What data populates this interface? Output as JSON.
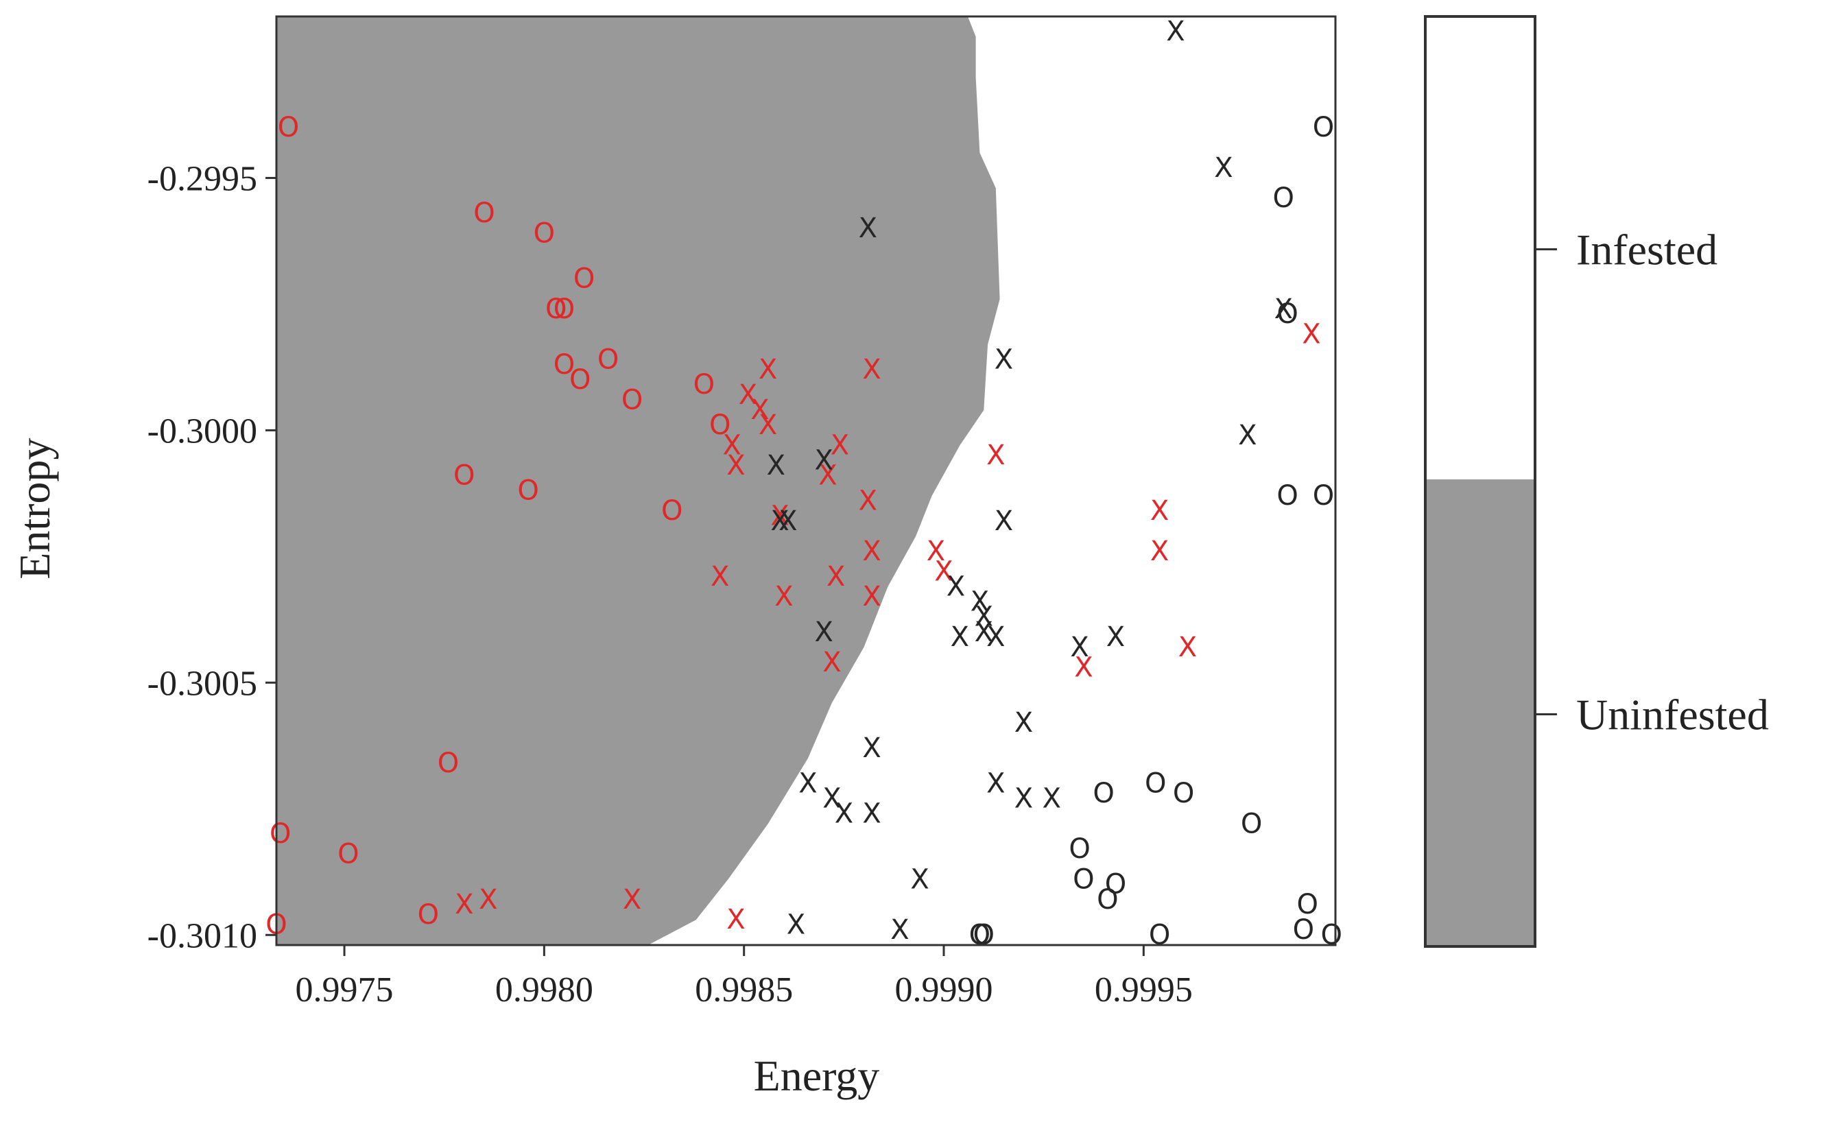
{
  "chart_data": {
    "type": "scatter",
    "xlabel": "Energy",
    "ylabel": "Entropy",
    "xlim": [
      0.99733,
      0.99998
    ],
    "ylim": [
      -0.30102,
      -0.29918
    ],
    "xticks": [
      "0.9975",
      "0.9980",
      "0.9985",
      "0.9990",
      "0.9995"
    ],
    "xtick_values": [
      0.9975,
      0.998,
      0.9985,
      0.999,
      0.9995
    ],
    "yticks": [
      "-0.2995",
      "-0.3000",
      "-0.3005",
      "-0.3010"
    ],
    "ytick_values": [
      -0.2995,
      -0.3,
      -0.3005,
      -0.301
    ],
    "regions": {
      "uninfested_color": "#999999",
      "infested_color": "#ffffff",
      "boundary": [
        [
          0.99906,
          -0.29918
        ],
        [
          0.99908,
          -0.29922
        ],
        [
          0.99908,
          -0.2993
        ],
        [
          0.99909,
          -0.29945
        ],
        [
          0.99913,
          -0.29952
        ],
        [
          0.99914,
          -0.29974
        ],
        [
          0.99911,
          -0.29983
        ],
        [
          0.9991,
          -0.29996
        ],
        [
          0.99904,
          -0.30003
        ],
        [
          0.99897,
          -0.30013
        ],
        [
          0.99893,
          -0.30021
        ],
        [
          0.99886,
          -0.30031
        ],
        [
          0.9988,
          -0.30043
        ],
        [
          0.99872,
          -0.30054
        ],
        [
          0.99866,
          -0.30065
        ],
        [
          0.99856,
          -0.30078
        ],
        [
          0.99846,
          -0.30089
        ],
        [
          0.99838,
          -0.30097
        ],
        [
          0.99826,
          -0.30102
        ]
      ]
    },
    "legend": {
      "bar_labels": [
        "Infested",
        "Uninfested"
      ],
      "bar_colors": [
        "#ffffff",
        "#999999"
      ],
      "placement": "right"
    },
    "series": [
      {
        "name": "red-o",
        "marker": "O",
        "color": "#e02828",
        "points": [
          [
            0.99736,
            -0.2994
          ],
          [
            0.99785,
            -0.29957
          ],
          [
            0.998,
            -0.29961
          ],
          [
            0.9981,
            -0.2997
          ],
          [
            0.99803,
            -0.29976
          ],
          [
            0.99805,
            -0.29976
          ],
          [
            0.99816,
            -0.29986
          ],
          [
            0.99805,
            -0.29987
          ],
          [
            0.99809,
            -0.2999
          ],
          [
            0.99822,
            -0.29994
          ],
          [
            0.9984,
            -0.29991
          ],
          [
            0.99844,
            -0.29999
          ],
          [
            0.9978,
            -0.30009
          ],
          [
            0.99796,
            -0.30012
          ],
          [
            0.99832,
            -0.30016
          ],
          [
            0.99776,
            -0.30066
          ],
          [
            0.99734,
            -0.3008
          ],
          [
            0.99751,
            -0.30084
          ],
          [
            0.99733,
            -0.30098
          ],
          [
            0.99771,
            -0.30096
          ]
        ]
      },
      {
        "name": "red-x",
        "marker": "X",
        "color": "#e02828",
        "points": [
          [
            0.99856,
            -0.29988
          ],
          [
            0.99882,
            -0.29988
          ],
          [
            0.99851,
            -0.29993
          ],
          [
            0.99854,
            -0.29996
          ],
          [
            0.99856,
            -0.29999
          ],
          [
            0.99847,
            -0.30003
          ],
          [
            0.99848,
            -0.30007
          ],
          [
            0.99874,
            -0.30003
          ],
          [
            0.99871,
            -0.30009
          ],
          [
            0.99913,
            -0.30005
          ],
          [
            0.99881,
            -0.30014
          ],
          [
            0.99859,
            -0.30017
          ],
          [
            0.99882,
            -0.30024
          ],
          [
            0.99844,
            -0.30029
          ],
          [
            0.9986,
            -0.30033
          ],
          [
            0.99873,
            -0.30029
          ],
          [
            0.99882,
            -0.30033
          ],
          [
            0.99872,
            -0.30046
          ],
          [
            0.99898,
            -0.30024
          ],
          [
            0.999,
            -0.30028
          ],
          [
            0.99954,
            -0.30016
          ],
          [
            0.99954,
            -0.30024
          ],
          [
            0.99961,
            -0.30043
          ],
          [
            0.99935,
            -0.30047
          ],
          [
            0.99992,
            -0.29981
          ],
          [
            0.99848,
            -0.30097
          ],
          [
            0.9978,
            -0.30094
          ],
          [
            0.99786,
            -0.30093
          ],
          [
            0.99822,
            -0.30093
          ]
        ]
      },
      {
        "name": "black-o",
        "marker": "O",
        "color": "#262626",
        "points": [
          [
            0.99995,
            -0.2994
          ],
          [
            0.99985,
            -0.29954
          ],
          [
            0.99986,
            -0.29977
          ],
          [
            0.99986,
            -0.30013
          ],
          [
            0.99995,
            -0.30013
          ],
          [
            0.99953,
            -0.3007
          ],
          [
            0.9994,
            -0.30072
          ],
          [
            0.9996,
            -0.30072
          ],
          [
            0.99977,
            -0.30078
          ],
          [
            0.99934,
            -0.30083
          ],
          [
            0.99935,
            -0.30089
          ],
          [
            0.99943,
            -0.3009
          ],
          [
            0.99941,
            -0.30093
          ],
          [
            0.99991,
            -0.30094
          ],
          [
            0.99909,
            -0.301
          ],
          [
            0.9991,
            -0.301
          ],
          [
            0.99954,
            -0.301
          ],
          [
            0.9999,
            -0.30099
          ],
          [
            0.99997,
            -0.301
          ]
        ]
      },
      {
        "name": "black-x",
        "marker": "X",
        "color": "#262626",
        "points": [
          [
            0.99958,
            -0.29921
          ],
          [
            0.9997,
            -0.29948
          ],
          [
            0.99881,
            -0.2996
          ],
          [
            0.99985,
            -0.29976
          ],
          [
            0.99915,
            -0.29986
          ],
          [
            0.99976,
            -0.30001
          ],
          [
            0.99858,
            -0.30007
          ],
          [
            0.9987,
            -0.30006
          ],
          [
            0.99859,
            -0.30018
          ],
          [
            0.99861,
            -0.30018
          ],
          [
            0.99915,
            -0.30018
          ],
          [
            0.99903,
            -0.30031
          ],
          [
            0.99909,
            -0.30034
          ],
          [
            0.9991,
            -0.30037
          ],
          [
            0.9991,
            -0.3004
          ],
          [
            0.99904,
            -0.30041
          ],
          [
            0.99913,
            -0.30041
          ],
          [
            0.99934,
            -0.30043
          ],
          [
            0.99943,
            -0.30041
          ],
          [
            0.9987,
            -0.3004
          ],
          [
            0.9992,
            -0.30058
          ],
          [
            0.99882,
            -0.30063
          ],
          [
            0.99866,
            -0.3007
          ],
          [
            0.99872,
            -0.30073
          ],
          [
            0.99875,
            -0.30076
          ],
          [
            0.99882,
            -0.30076
          ],
          [
            0.99913,
            -0.3007
          ],
          [
            0.9992,
            -0.30073
          ],
          [
            0.99927,
            -0.30073
          ],
          [
            0.99894,
            -0.30089
          ],
          [
            0.99863,
            -0.30098
          ],
          [
            0.99889,
            -0.30099
          ]
        ]
      }
    ]
  }
}
